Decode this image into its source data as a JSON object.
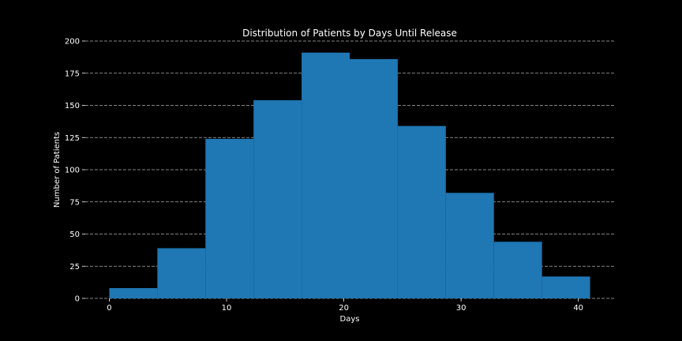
{
  "chart_data": {
    "type": "bar",
    "subtype": "histogram",
    "title": "Distribution of Patients by Days Until Release",
    "xlabel": "Days",
    "ylabel": "Number of Patients",
    "bin_edges": [
      0,
      4.1,
      8.2,
      12.3,
      16.4,
      20.5,
      24.6,
      28.7,
      32.8,
      36.9,
      41
    ],
    "values": [
      8,
      39,
      124,
      154,
      191,
      186,
      134,
      82,
      44,
      17
    ],
    "xlim": [
      -2.05,
      43.05
    ],
    "ylim": [
      0,
      200
    ],
    "xticks": [
      0,
      10,
      20,
      30,
      40
    ],
    "yticks": [
      0,
      25,
      50,
      75,
      100,
      125,
      150,
      175,
      200
    ],
    "grid": "y-dashed",
    "legend": "none",
    "colors": {
      "bar": "#1f77b4",
      "background": "#000000",
      "text": "#ffffff",
      "grid": "#b0b0b0"
    }
  }
}
